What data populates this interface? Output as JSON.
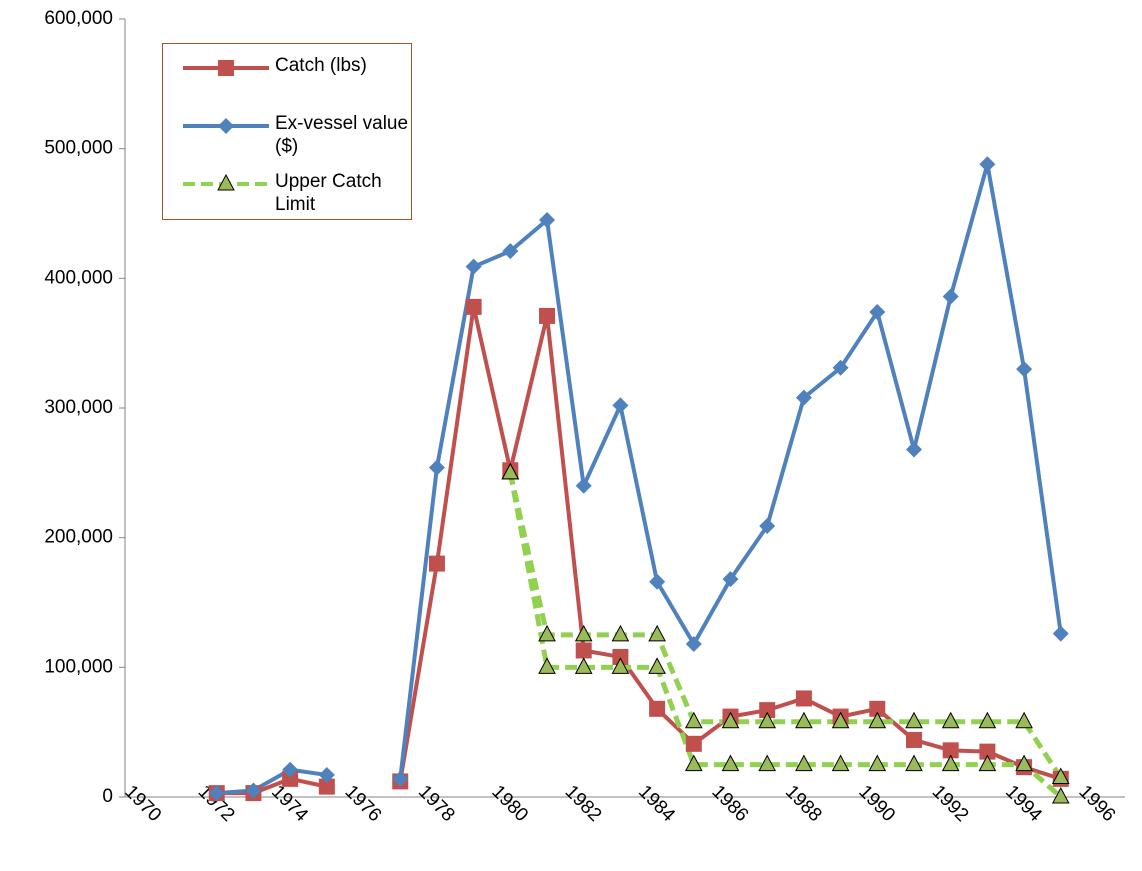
{
  "chart_data": {
    "type": "line",
    "x": [
      1972,
      1973,
      1974,
      1975,
      1976,
      1977,
      1978,
      1979,
      1980,
      1981,
      1982,
      1983,
      1984,
      1985,
      1986,
      1987,
      1988,
      1989,
      1990,
      1991,
      1992,
      1993,
      1994,
      1995
    ],
    "series": [
      {
        "name": "Catch (lbs)",
        "color": "#c0504d",
        "marker": "square",
        "values": [
          3000,
          3000,
          14000,
          8000,
          null,
          12000,
          180000,
          378000,
          252000,
          371000,
          113000,
          108000,
          68000,
          41000,
          62000,
          67000,
          76000,
          62000,
          68000,
          44000,
          36000,
          35000,
          23000,
          14000
        ]
      },
      {
        "name": "Ex-vessel value ($)",
        "color": "#4f81bd",
        "marker": "diamond",
        "values": [
          3000,
          5000,
          21000,
          17000,
          null,
          14000,
          254000,
          409000,
          421000,
          445000,
          240000,
          302000,
          166000,
          118000,
          168000,
          209000,
          308000,
          331000,
          374000,
          268000,
          386000,
          488000,
          330000,
          126000
        ]
      },
      {
        "name": "Upper Catch Limit",
        "color": "#92d050",
        "marker": "triangle",
        "dashed": true,
        "values": [
          null,
          null,
          null,
          null,
          null,
          null,
          null,
          null,
          250000,
          125000,
          125000,
          125000,
          125000,
          58000,
          58000,
          58000,
          58000,
          58000,
          58000,
          58000,
          58000,
          58000,
          58000,
          15000
        ]
      },
      {
        "color": "#92d050",
        "marker": "triangle",
        "dashed": true,
        "values": [
          null,
          null,
          null,
          null,
          null,
          null,
          null,
          null,
          250000,
          100000,
          100000,
          100000,
          100000,
          25000,
          25000,
          25000,
          25000,
          25000,
          25000,
          25000,
          25000,
          25000,
          25000,
          0
        ]
      }
    ],
    "xlim": [
      1969.5,
      1996.75
    ],
    "xticks": [
      1970,
      1972,
      1974,
      1976,
      1978,
      1980,
      1982,
      1984,
      1986,
      1988,
      1990,
      1992,
      1994,
      1996
    ],
    "ylim": [
      0,
      600000
    ],
    "yticks": [
      0,
      {
        "value": 100000,
        "label": "100,000"
      },
      {
        "value": 200000,
        "label": "200,000"
      },
      {
        "value": 300000,
        "label": "300,000"
      },
      {
        "value": 400000,
        "label": "400,000"
      },
      {
        "value": 500000,
        "label": "500,000"
      },
      {
        "value": 600000,
        "label": "600,000"
      }
    ],
    "legend": "top-left"
  }
}
